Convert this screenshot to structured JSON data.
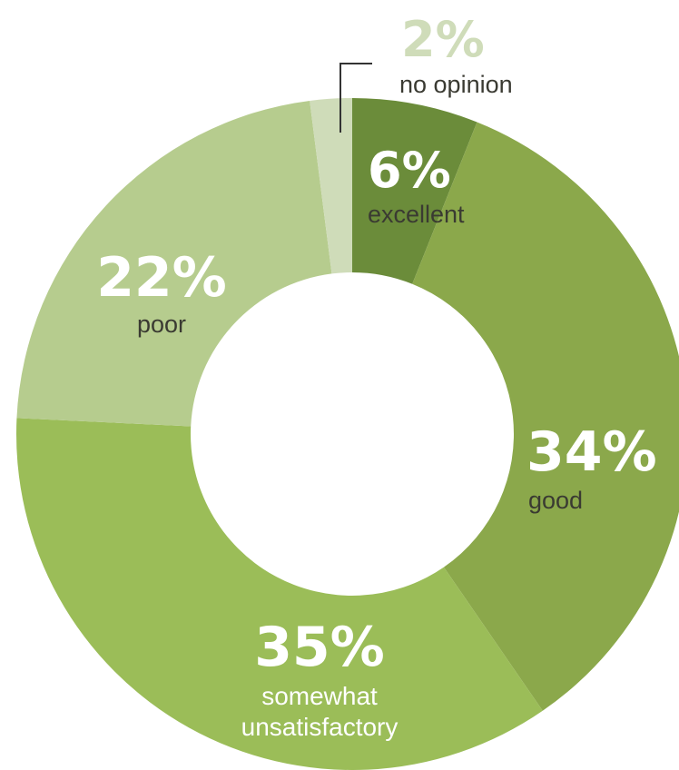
{
  "chart_data": {
    "type": "pie",
    "donut": true,
    "categories": [
      "excellent",
      "good",
      "somewhat unsatisfactory",
      "poor",
      "no opinion"
    ],
    "values": [
      6,
      34,
      35,
      22,
      2
    ],
    "labels": [
      {
        "value": "6%",
        "lines": [
          "excellent"
        ]
      },
      {
        "value": "34%",
        "lines": [
          "good"
        ]
      },
      {
        "value": "35%",
        "lines": [
          "somewhat",
          "unsatisfactory"
        ]
      },
      {
        "value": "22%",
        "lines": [
          "poor"
        ]
      },
      {
        "value": "2%",
        "lines": [
          "no opinion"
        ]
      }
    ],
    "colors": [
      "#6b8c3a",
      "#8ba84b",
      "#9bbd58",
      "#b6cc8e",
      "#cfdcb9"
    ],
    "text_colors": {
      "percent": "#ffffff",
      "percent_outside": "#cfdcb9",
      "label_dark": "#3a3a32",
      "label_light": "#ffffff"
    },
    "legend": "none"
  }
}
